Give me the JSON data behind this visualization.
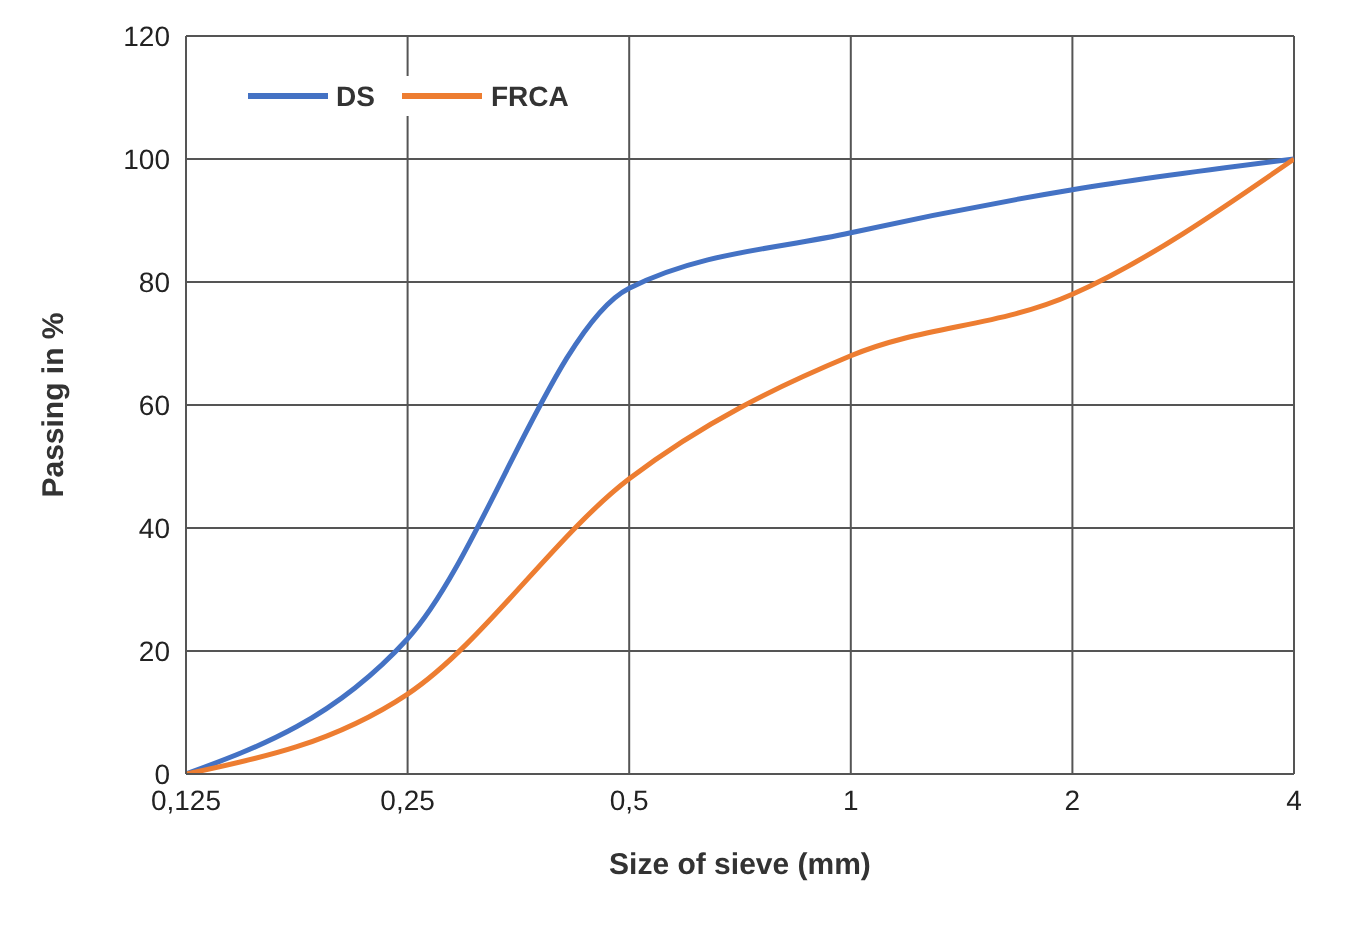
{
  "chart_data": {
    "type": "line",
    "xlabel": "Size of sieve (mm)",
    "ylabel": "Passing in %",
    "categories": [
      "0,125",
      "0,25",
      "0,5",
      "1",
      "2",
      "4"
    ],
    "series": [
      {
        "name": "DS",
        "color": "#4472c4",
        "values": [
          0,
          22,
          79,
          88,
          95,
          100
        ]
      },
      {
        "name": "FRCA",
        "color": "#ed7d31",
        "values": [
          0,
          13,
          48,
          68,
          78,
          100
        ]
      }
    ],
    "ylim": [
      0,
      120
    ],
    "yticks": [
      0,
      20,
      40,
      60,
      80,
      100,
      120
    ],
    "grid": true,
    "legend": "top left",
    "marker": "none",
    "line_style": "solid"
  }
}
